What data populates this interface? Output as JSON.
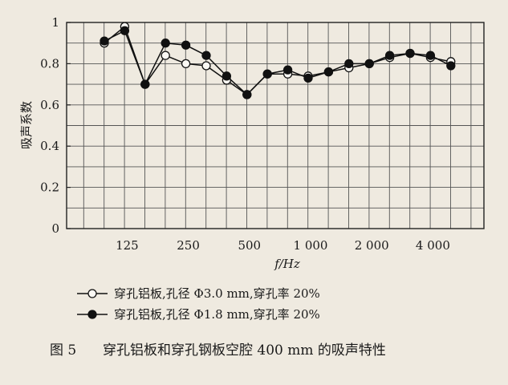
{
  "chart_data": {
    "type": "line",
    "ylabel": "吸声系数",
    "xlabel": "f/Hz",
    "x_tick_labels": [
      "125",
      "250",
      "500",
      "1 000",
      "2 000",
      "4 000"
    ],
    "y_tick_labels": [
      "0",
      "0.2",
      "0.4",
      "0.6",
      "0.8",
      "1"
    ],
    "ylim": [
      0,
      1
    ],
    "grid": true,
    "x_scale": "one-third octave bands (log frequency)",
    "x": [
      100,
      125,
      160,
      200,
      250,
      315,
      400,
      500,
      630,
      800,
      1000,
      1250,
      1600,
      2000,
      2500,
      3150,
      4000,
      5000
    ],
    "series": [
      {
        "name": "穿孔铝板,孔径 Φ3.0 mm,穿孔率 20%",
        "marker": "open-circle",
        "values": [
          0.9,
          0.98,
          0.7,
          0.84,
          0.8,
          0.79,
          0.72,
          0.65,
          0.75,
          0.75,
          0.74,
          0.76,
          0.78,
          0.8,
          0.83,
          0.85,
          0.83,
          0.81
        ]
      },
      {
        "name": "穿孔铝板,孔径 Φ1.8 mm,穿孔率 20%",
        "marker": "filled-circle",
        "values": [
          0.91,
          0.96,
          0.7,
          0.9,
          0.89,
          0.84,
          0.74,
          0.65,
          0.75,
          0.77,
          0.73,
          0.76,
          0.8,
          0.8,
          0.84,
          0.85,
          0.84,
          0.79
        ]
      }
    ]
  },
  "caption": {
    "label": "图 5",
    "text": "穿孔铝板和穿孔钢板空腔 400 mm 的吸声特性"
  }
}
